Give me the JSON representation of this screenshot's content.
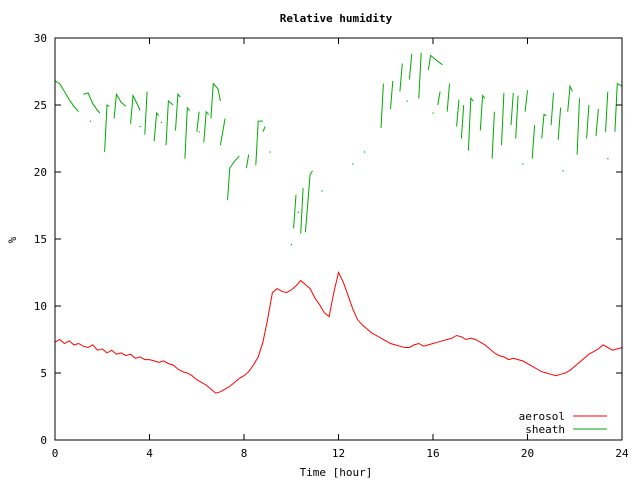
{
  "chart_data": {
    "type": "line",
    "title": "Relative humidity",
    "xlabel": "Time [hour]",
    "ylabel": "%",
    "xlim": [
      0,
      24
    ],
    "ylim": [
      0,
      30
    ],
    "xticks": [
      0,
      4,
      8,
      12,
      16,
      20,
      24
    ],
    "yticks": [
      0,
      5,
      10,
      15,
      20,
      25,
      30
    ],
    "legend_position": "bottom-right",
    "grid": false,
    "series": [
      {
        "name": "aerosol",
        "color": "#ff0000",
        "points": [
          [
            0.0,
            7.3
          ],
          [
            0.2,
            7.5
          ],
          [
            0.4,
            7.2
          ],
          [
            0.6,
            7.4
          ],
          [
            0.8,
            7.1
          ],
          [
            1.0,
            7.2
          ],
          [
            1.2,
            7.0
          ],
          [
            1.4,
            6.9
          ],
          [
            1.6,
            7.1
          ],
          [
            1.8,
            6.7
          ],
          [
            2.0,
            6.8
          ],
          [
            2.2,
            6.5
          ],
          [
            2.4,
            6.7
          ],
          [
            2.6,
            6.4
          ],
          [
            2.8,
            6.5
          ],
          [
            3.0,
            6.3
          ],
          [
            3.2,
            6.4
          ],
          [
            3.4,
            6.1
          ],
          [
            3.6,
            6.2
          ],
          [
            3.8,
            6.0
          ],
          [
            4.0,
            6.0
          ],
          [
            4.2,
            5.9
          ],
          [
            4.4,
            5.8
          ],
          [
            4.6,
            5.9
          ],
          [
            4.8,
            5.7
          ],
          [
            5.0,
            5.6
          ],
          [
            5.2,
            5.3
          ],
          [
            5.4,
            5.1
          ],
          [
            5.6,
            5.0
          ],
          [
            5.8,
            4.8
          ],
          [
            6.0,
            4.5
          ],
          [
            6.2,
            4.3
          ],
          [
            6.4,
            4.1
          ],
          [
            6.6,
            3.8
          ],
          [
            6.8,
            3.5
          ],
          [
            7.0,
            3.6
          ],
          [
            7.2,
            3.8
          ],
          [
            7.4,
            4.0
          ],
          [
            7.6,
            4.3
          ],
          [
            7.8,
            4.6
          ],
          [
            8.0,
            4.8
          ],
          [
            8.2,
            5.1
          ],
          [
            8.4,
            5.6
          ],
          [
            8.6,
            6.2
          ],
          [
            8.8,
            7.3
          ],
          [
            9.0,
            9.0
          ],
          [
            9.2,
            11.0
          ],
          [
            9.4,
            11.3
          ],
          [
            9.6,
            11.1
          ],
          [
            9.8,
            11.0
          ],
          [
            10.0,
            11.2
          ],
          [
            10.2,
            11.5
          ],
          [
            10.4,
            11.9
          ],
          [
            10.6,
            11.6
          ],
          [
            10.8,
            11.3
          ],
          [
            11.0,
            10.6
          ],
          [
            11.2,
            10.1
          ],
          [
            11.4,
            9.5
          ],
          [
            11.6,
            9.2
          ],
          [
            11.8,
            11.0
          ],
          [
            12.0,
            12.5
          ],
          [
            12.2,
            11.8
          ],
          [
            12.4,
            10.8
          ],
          [
            12.6,
            9.8
          ],
          [
            12.8,
            9.0
          ],
          [
            13.0,
            8.6
          ],
          [
            13.2,
            8.3
          ],
          [
            13.4,
            8.0
          ],
          [
            13.6,
            7.8
          ],
          [
            13.8,
            7.6
          ],
          [
            14.0,
            7.4
          ],
          [
            14.2,
            7.2
          ],
          [
            14.4,
            7.1
          ],
          [
            14.6,
            7.0
          ],
          [
            14.8,
            6.9
          ],
          [
            15.0,
            6.9
          ],
          [
            15.2,
            7.1
          ],
          [
            15.4,
            7.2
          ],
          [
            15.6,
            7.0
          ],
          [
            15.8,
            7.1
          ],
          [
            16.0,
            7.2
          ],
          [
            16.2,
            7.3
          ],
          [
            16.4,
            7.4
          ],
          [
            16.6,
            7.5
          ],
          [
            16.8,
            7.6
          ],
          [
            17.0,
            7.8
          ],
          [
            17.2,
            7.7
          ],
          [
            17.4,
            7.5
          ],
          [
            17.6,
            7.6
          ],
          [
            17.8,
            7.5
          ],
          [
            18.0,
            7.3
          ],
          [
            18.2,
            7.1
          ],
          [
            18.4,
            6.8
          ],
          [
            18.6,
            6.5
          ],
          [
            18.8,
            6.3
          ],
          [
            19.0,
            6.2
          ],
          [
            19.2,
            6.0
          ],
          [
            19.4,
            6.1
          ],
          [
            19.6,
            6.0
          ],
          [
            19.8,
            5.9
          ],
          [
            20.0,
            5.7
          ],
          [
            20.2,
            5.5
          ],
          [
            20.4,
            5.3
          ],
          [
            20.6,
            5.1
          ],
          [
            20.8,
            5.0
          ],
          [
            21.0,
            4.9
          ],
          [
            21.2,
            4.8
          ],
          [
            21.4,
            4.9
          ],
          [
            21.6,
            5.0
          ],
          [
            21.8,
            5.2
          ],
          [
            22.0,
            5.5
          ],
          [
            22.2,
            5.8
          ],
          [
            22.4,
            6.1
          ],
          [
            22.6,
            6.4
          ],
          [
            22.8,
            6.6
          ],
          [
            23.0,
            6.8
          ],
          [
            23.2,
            7.1
          ],
          [
            23.4,
            6.9
          ],
          [
            23.6,
            6.7
          ],
          [
            23.8,
            6.8
          ],
          [
            24.0,
            6.9
          ]
        ]
      },
      {
        "name": "sheath",
        "color": "#00aa00",
        "segments": [
          [
            [
              0.0,
              26.8
            ],
            [
              0.2,
              26.6
            ],
            [
              0.4,
              26.0
            ],
            [
              0.6,
              25.4
            ],
            [
              0.8,
              24.9
            ],
            [
              1.0,
              24.5
            ]
          ],
          [
            [
              1.2,
              25.8
            ],
            [
              1.4,
              25.9
            ],
            [
              1.6,
              25.1
            ],
            [
              1.8,
              24.6
            ],
            [
              1.9,
              24.4
            ]
          ],
          [
            [
              2.1,
              21.5
            ],
            [
              2.2,
              25.0
            ],
            [
              2.3,
              24.9
            ]
          ],
          [
            [
              2.5,
              24.0
            ],
            [
              2.6,
              25.8
            ],
            [
              2.8,
              25.2
            ],
            [
              3.0,
              24.9
            ]
          ],
          [
            [
              3.2,
              23.6
            ],
            [
              3.3,
              25.7
            ],
            [
              3.5,
              25.0
            ],
            [
              3.6,
              24.6
            ]
          ],
          [
            [
              3.8,
              22.8
            ],
            [
              3.9,
              26.0
            ]
          ],
          [
            [
              4.2,
              22.3
            ],
            [
              4.3,
              24.4
            ],
            [
              4.4,
              24.2
            ]
          ],
          [
            [
              4.7,
              22.0
            ],
            [
              4.8,
              25.3
            ],
            [
              5.0,
              25.0
            ]
          ],
          [
            [
              5.1,
              23.1
            ],
            [
              5.2,
              25.8
            ],
            [
              5.3,
              25.6
            ]
          ],
          [
            [
              5.5,
              21.0
            ],
            [
              5.6,
              24.8
            ],
            [
              5.7,
              24.6
            ]
          ],
          [
            [
              6.0,
              23.0
            ],
            [
              6.1,
              24.5
            ]
          ],
          [
            [
              6.3,
              22.2
            ],
            [
              6.4,
              24.5
            ],
            [
              6.5,
              24.3
            ]
          ],
          [
            [
              6.6,
              24.0
            ],
            [
              6.7,
              26.6
            ],
            [
              6.9,
              26.2
            ],
            [
              7.0,
              25.3
            ]
          ],
          [
            [
              7.0,
              22.0
            ],
            [
              7.2,
              24.0
            ]
          ],
          [
            [
              7.3,
              17.9
            ],
            [
              7.4,
              20.3
            ],
            [
              7.6,
              20.8
            ],
            [
              7.8,
              21.2
            ]
          ],
          [
            [
              8.1,
              20.3
            ],
            [
              8.2,
              21.3
            ]
          ],
          [
            [
              8.5,
              20.5
            ],
            [
              8.6,
              23.8
            ],
            [
              8.8,
              23.8
            ]
          ],
          [
            [
              8.8,
              23.0
            ],
            [
              8.9,
              23.4
            ]
          ],
          [
            [
              10.1,
              15.8
            ],
            [
              10.2,
              18.3
            ]
          ],
          [
            [
              10.4,
              15.4
            ],
            [
              10.5,
              18.8
            ]
          ],
          [
            [
              10.6,
              15.5
            ],
            [
              10.8,
              19.8
            ],
            [
              10.9,
              20.1
            ]
          ],
          [
            [
              13.8,
              23.3
            ],
            [
              13.9,
              26.6
            ]
          ],
          [
            [
              14.2,
              24.7
            ],
            [
              14.3,
              26.8
            ]
          ],
          [
            [
              14.6,
              26.0
            ],
            [
              14.7,
              28.1
            ]
          ],
          [
            [
              15.0,
              26.9
            ],
            [
              15.1,
              28.8
            ]
          ],
          [
            [
              15.4,
              25.5
            ],
            [
              15.5,
              28.9
            ]
          ],
          [
            [
              15.8,
              27.6
            ],
            [
              15.9,
              28.7
            ],
            [
              16.1,
              28.4
            ],
            [
              16.4,
              28.0
            ]
          ],
          [
            [
              16.2,
              25.0
            ],
            [
              16.3,
              26.0
            ]
          ],
          [
            [
              16.6,
              24.5
            ],
            [
              16.7,
              26.6
            ]
          ],
          [
            [
              17.0,
              23.4
            ],
            [
              17.1,
              25.4
            ]
          ],
          [
            [
              17.2,
              22.5
            ],
            [
              17.3,
              25.0
            ]
          ],
          [
            [
              17.5,
              21.6
            ],
            [
              17.6,
              25.5
            ],
            [
              17.7,
              25.3
            ]
          ],
          [
            [
              18.0,
              23.1
            ],
            [
              18.1,
              25.7
            ],
            [
              18.2,
              25.5
            ]
          ],
          [
            [
              18.5,
              21.0
            ],
            [
              18.6,
              24.5
            ]
          ],
          [
            [
              18.9,
              22.0
            ],
            [
              19.0,
              25.9
            ]
          ],
          [
            [
              19.3,
              23.5
            ],
            [
              19.4,
              25.9
            ]
          ],
          [
            [
              19.5,
              22.5
            ],
            [
              19.6,
              25.7
            ]
          ],
          [
            [
              19.9,
              24.5
            ],
            [
              20.0,
              26.1
            ]
          ],
          [
            [
              20.2,
              21.0
            ],
            [
              20.3,
              23.5
            ]
          ],
          [
            [
              20.6,
              22.5
            ],
            [
              20.7,
              24.3
            ],
            [
              20.8,
              24.2
            ]
          ],
          [
            [
              21.0,
              23.5
            ],
            [
              21.1,
              25.9
            ]
          ],
          [
            [
              21.3,
              22.4
            ],
            [
              21.4,
              24.8
            ]
          ],
          [
            [
              21.7,
              24.5
            ],
            [
              21.8,
              26.4
            ],
            [
              21.9,
              26.0
            ]
          ],
          [
            [
              22.1,
              21.3
            ],
            [
              22.2,
              25.5
            ]
          ],
          [
            [
              22.5,
              22.5
            ],
            [
              22.6,
              25.0
            ]
          ],
          [
            [
              22.9,
              22.7
            ],
            [
              23.0,
              24.7
            ]
          ],
          [
            [
              23.3,
              23.0
            ],
            [
              23.4,
              26.0
            ]
          ],
          [
            [
              23.7,
              23.0
            ],
            [
              23.8,
              26.6
            ],
            [
              24.0,
              26.4
            ]
          ]
        ],
        "dots": [
          [
            1.5,
            23.8
          ],
          [
            3.6,
            23.4
          ],
          [
            4.5,
            23.7
          ],
          [
            6.1,
            23.0
          ],
          [
            9.1,
            21.5
          ],
          [
            10.0,
            14.6
          ],
          [
            10.3,
            17.0
          ],
          [
            11.3,
            18.6
          ],
          [
            12.6,
            20.6
          ],
          [
            13.1,
            21.5
          ],
          [
            14.9,
            25.3
          ],
          [
            16.0,
            24.4
          ],
          [
            19.8,
            20.6
          ],
          [
            21.5,
            20.1
          ],
          [
            23.4,
            21.0
          ]
        ]
      }
    ]
  }
}
